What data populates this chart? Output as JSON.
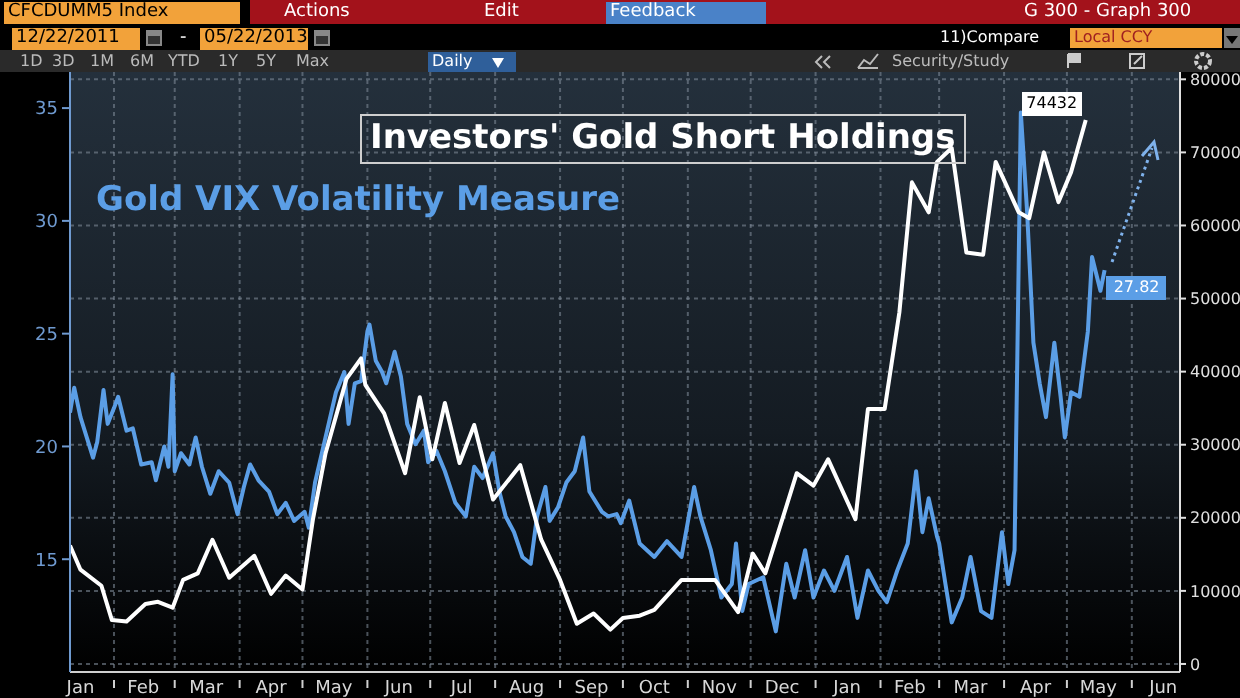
{
  "chart_data": {
    "type": "line",
    "annotations": [
      "CFCDUMM5 Index",
      "Actions",
      "Edit",
      "Feedback",
      "G 300 - Graph 300",
      "12/22/2011",
      "-",
      "05/22/2013",
      "11)Compare",
      "Local CCY",
      "1D",
      "3D",
      "1M",
      "6M",
      "YTD",
      "1Y",
      "5Y",
      "Max",
      "Daily",
      "Security/Study"
    ],
    "xlim": [
      "2012-01-11",
      "2013-06-24"
    ],
    "xticks": [
      {
        "value": "2012-01-16",
        "label": "Jan"
      },
      {
        "value": "2012-02-01",
        "label": null
      },
      {
        "value": "2012-02-15",
        "label": "Feb"
      },
      {
        "value": "2012-03-01",
        "label": null
      },
      {
        "value": "2012-03-16",
        "label": "Mar"
      },
      {
        "value": "2012-04-01",
        "label": null
      },
      {
        "value": "2012-04-16",
        "label": "Apr"
      },
      {
        "value": "2012-05-01",
        "label": null
      },
      {
        "value": "2012-05-16",
        "label": "May"
      },
      {
        "value": "2012-06-01",
        "label": null
      },
      {
        "value": "2012-06-16",
        "label": "Jun"
      },
      {
        "value": "2012-07-01",
        "label": null
      },
      {
        "value": "2012-07-16",
        "label": "Jul"
      },
      {
        "value": "2012-08-01",
        "label": null
      },
      {
        "value": "2012-08-16",
        "label": "Aug"
      },
      {
        "value": "2012-09-01",
        "label": null
      },
      {
        "value": "2012-09-16",
        "label": "Sep"
      },
      {
        "value": "2012-10-01",
        "label": null
      },
      {
        "value": "2012-10-16",
        "label": "Oct"
      },
      {
        "value": "2012-11-01",
        "label": null
      },
      {
        "value": "2012-11-16",
        "label": "Nov"
      },
      {
        "value": "2012-12-01",
        "label": null
      },
      {
        "value": "2012-12-16",
        "label": "Dec"
      },
      {
        "value": "2013-01-01",
        "label": null
      },
      {
        "value": "2013-01-16",
        "label": "Jan"
      },
      {
        "value": "2013-02-01",
        "label": null
      },
      {
        "value": "2013-02-15",
        "label": "Feb"
      },
      {
        "value": "2013-03-01",
        "label": null
      },
      {
        "value": "2013-03-16",
        "label": "Mar"
      },
      {
        "value": "2013-04-01",
        "label": null
      },
      {
        "value": "2013-04-16",
        "label": "Apr"
      },
      {
        "value": "2013-05-01",
        "label": null
      },
      {
        "value": "2013-05-16",
        "label": "May"
      },
      {
        "value": "2013-06-01",
        "label": null
      },
      {
        "value": "2013-06-16",
        "label": "Jun"
      }
    ],
    "ylim": [
      10,
      36.6
    ],
    "yticks": [
      15,
      20,
      25,
      30,
      35
    ],
    "y2lim": [
      -1100,
      81000
    ],
    "y2ticks": [
      0,
      10000,
      20000,
      30000,
      40000,
      50000,
      60000,
      70000,
      80000
    ],
    "grid": true,
    "legend": false,
    "marker": "none",
    "line_style": "solid",
    "series": [
      {
        "name": "Gold VIX Volatility Measure",
        "color": "#5b9ee6",
        "axis": "y",
        "x": [
          "2012-01-11",
          "2012-01-13",
          "2012-01-16",
          "2012-01-19",
          "2012-01-22",
          "2012-01-24",
          "2012-01-27",
          "2012-01-29",
          "2012-02-01",
          "2012-02-03",
          "2012-02-07",
          "2012-02-10",
          "2012-02-14",
          "2012-02-19",
          "2012-02-21",
          "2012-02-25",
          "2012-02-27",
          "2012-02-29",
          "2012-03-01",
          "2012-03-04",
          "2012-03-08",
          "2012-03-11",
          "2012-03-14",
          "2012-03-18",
          "2012-03-22",
          "2012-03-27",
          "2012-03-31",
          "2012-04-03",
          "2012-04-06",
          "2012-04-10",
          "2012-04-15",
          "2012-04-19",
          "2012-04-23",
          "2012-04-27",
          "2012-05-02",
          "2012-05-04",
          "2012-05-07",
          "2012-05-12",
          "2012-05-17",
          "2012-05-21",
          "2012-05-23",
          "2012-05-26",
          "2012-05-29",
          "2012-06-01",
          "2012-06-02",
          "2012-06-05",
          "2012-06-08",
          "2012-06-10",
          "2012-06-14",
          "2012-06-17",
          "2012-06-20",
          "2012-06-24",
          "2012-06-28",
          "2012-06-30",
          "2012-07-04",
          "2012-07-08",
          "2012-07-13",
          "2012-07-18",
          "2012-07-22",
          "2012-07-26",
          "2012-07-31",
          "2012-08-03",
          "2012-08-06",
          "2012-08-10",
          "2012-08-14",
          "2012-08-18",
          "2012-08-21",
          "2012-08-25",
          "2012-08-27",
          "2012-08-31",
          "2012-09-04",
          "2012-09-08",
          "2012-09-12",
          "2012-09-15",
          "2012-09-21",
          "2012-09-24",
          "2012-09-28",
          "2012-09-30",
          "2012-10-04",
          "2012-10-09",
          "2012-10-16",
          "2012-10-22",
          "2012-10-29",
          "2012-11-04",
          "2012-11-07",
          "2012-11-12",
          "2012-11-17",
          "2012-11-22",
          "2012-11-24",
          "2012-11-27",
          "2012-11-30",
          "2012-12-07",
          "2012-12-13",
          "2012-12-18",
          "2012-12-22",
          "2012-12-27",
          "2012-12-31",
          "2013-01-05",
          "2013-01-10",
          "2013-01-16",
          "2013-01-21",
          "2013-01-26",
          "2013-01-31",
          "2013-02-04",
          "2013-02-09",
          "2013-02-14",
          "2013-02-18",
          "2013-02-21",
          "2013-02-24",
          "2013-02-28",
          "2013-03-01",
          "2013-03-04",
          "2013-03-07",
          "2013-03-12",
          "2013-03-16",
          "2013-03-21",
          "2013-03-26",
          "2013-03-31",
          "2013-04-03",
          "2013-04-06",
          "2013-04-09",
          "2013-04-12",
          "2013-04-15",
          "2013-04-18",
          "2013-04-21",
          "2013-04-25",
          "2013-04-28",
          "2013-04-30",
          "2013-05-03",
          "2013-05-07",
          "2013-05-11",
          "2013-05-13",
          "2013-05-17",
          "2013-05-19"
        ],
        "values": [
          21.5,
          22.6,
          21.3,
          20.4,
          19.5,
          20.2,
          22.5,
          21.0,
          21.7,
          22.2,
          20.7,
          20.8,
          19.2,
          19.3,
          18.5,
          20.0,
          19.1,
          23.2,
          18.9,
          19.7,
          19.2,
          20.4,
          19.1,
          17.9,
          18.9,
          18.4,
          17.0,
          18.2,
          19.2,
          18.5,
          18.0,
          17.0,
          17.5,
          16.7,
          17.1,
          16.4,
          18.4,
          20.4,
          22.4,
          23.3,
          21.0,
          22.8,
          22.9,
          25.1,
          25.4,
          23.8,
          23.3,
          22.8,
          24.2,
          23.1,
          21.0,
          20.1,
          20.7,
          19.3,
          19.8,
          18.9,
          17.5,
          16.9,
          19.1,
          18.6,
          19.7,
          18.0,
          16.9,
          16.2,
          15.1,
          14.8,
          16.9,
          18.2,
          16.7,
          17.3,
          18.4,
          18.9,
          20.4,
          18.0,
          17.1,
          16.9,
          17.0,
          16.6,
          17.6,
          15.7,
          15.1,
          15.8,
          15.1,
          18.2,
          16.9,
          15.4,
          13.3,
          13.9,
          15.7,
          12.7,
          13.9,
          14.2,
          11.8,
          14.8,
          13.3,
          15.4,
          13.3,
          14.5,
          13.6,
          15.1,
          12.4,
          14.5,
          13.6,
          13.1,
          14.5,
          15.7,
          18.9,
          16.2,
          17.7,
          16.0,
          15.7,
          13.9,
          12.2,
          13.3,
          15.1,
          12.7,
          12.4,
          16.2,
          13.9,
          15.4,
          34.8,
          30.4,
          24.6,
          22.8,
          21.3,
          24.6,
          22.2,
          20.4,
          22.4,
          22.2,
          25.1,
          28.4,
          26.9,
          27.82
        ],
        "value_labels": [
          null,
          null,
          null,
          null,
          null,
          null,
          null,
          null,
          null,
          null,
          null,
          null,
          null,
          null,
          null,
          null,
          null,
          null,
          null,
          null,
          null,
          null,
          null,
          null,
          null,
          null,
          null,
          null,
          null,
          null,
          null,
          null,
          null,
          null,
          null,
          null,
          null,
          null,
          null,
          null,
          null,
          null,
          null,
          null,
          null,
          null,
          null,
          null,
          null,
          null,
          null,
          null,
          null,
          null,
          null,
          null,
          null,
          null,
          null,
          null,
          null,
          null,
          null,
          null,
          null,
          null,
          null,
          null,
          null,
          null,
          null,
          null,
          null,
          null,
          null,
          null,
          null,
          null,
          null,
          null,
          null,
          null,
          null,
          null,
          null,
          null,
          null,
          null,
          null,
          null,
          null,
          null,
          null,
          null,
          null,
          null,
          null,
          null,
          null,
          null,
          null,
          null,
          null,
          null,
          null,
          null,
          null,
          null,
          null,
          null,
          null,
          null,
          null,
          null,
          null,
          null,
          null,
          null,
          null,
          null,
          null,
          null,
          null,
          null,
          null,
          null,
          null,
          null,
          null,
          null,
          null,
          null,
          null,
          "27.82"
        ]
      },
      {
        "name": "Investors' Gold Short Holdings",
        "color": "#ffffff",
        "axis": "y2",
        "x": [
          "2012-01-11",
          "2012-01-16",
          "2012-01-26",
          "2012-01-31",
          "2012-02-07",
          "2012-02-16",
          "2012-02-22",
          "2012-02-29",
          "2012-03-05",
          "2012-03-12",
          "2012-03-19",
          "2012-03-27",
          "2012-04-08",
          "2012-04-16",
          "2012-04-23",
          "2012-05-01",
          "2012-05-06",
          "2012-05-12",
          "2012-05-22",
          "2012-05-29",
          "2012-05-31",
          "2012-06-09",
          "2012-06-19",
          "2012-06-26",
          "2012-07-02",
          "2012-07-08",
          "2012-07-15",
          "2012-07-22",
          "2012-07-31",
          "2012-08-13",
          "2012-08-23",
          "2012-09-01",
          "2012-09-09",
          "2012-09-17",
          "2012-09-25",
          "2012-10-01",
          "2012-10-09",
          "2012-10-16",
          "2012-10-29",
          "2012-11-14",
          "2012-11-25",
          "2012-12-02",
          "2012-12-08",
          "2012-12-17",
          "2012-12-23",
          "2012-12-31",
          "2013-01-07",
          "2013-01-20",
          "2013-01-26",
          "2013-02-03",
          "2013-02-10",
          "2013-02-16",
          "2013-02-24",
          "2013-02-28",
          "2013-03-07",
          "2013-03-14",
          "2013-03-22",
          "2013-03-28",
          "2013-04-08",
          "2013-04-13",
          "2013-04-20",
          "2013-04-27",
          "2013-05-03",
          "2013-05-10"
        ],
        "values": [
          16200,
          12900,
          10700,
          6000,
          5800,
          8200,
          8500,
          7700,
          11500,
          12400,
          17000,
          11800,
          14800,
          9600,
          12100,
          10200,
          19800,
          28800,
          39000,
          41800,
          38200,
          34300,
          26100,
          36500,
          28000,
          35700,
          27500,
          32700,
          22500,
          27200,
          17000,
          11500,
          5500,
          6900,
          4700,
          6300,
          6600,
          7400,
          11500,
          11500,
          7100,
          15100,
          12400,
          20600,
          26100,
          24400,
          28000,
          19800,
          34900,
          34900,
          48100,
          65900,
          61800,
          68700,
          70600,
          56300,
          56000,
          68700,
          61800,
          61000,
          70000,
          63200,
          67300,
          74432
        ],
        "value_labels": [
          null,
          null,
          null,
          null,
          null,
          null,
          null,
          null,
          null,
          null,
          null,
          null,
          null,
          null,
          null,
          null,
          null,
          null,
          null,
          null,
          null,
          null,
          null,
          null,
          null,
          null,
          null,
          null,
          null,
          null,
          null,
          null,
          null,
          null,
          null,
          null,
          null,
          null,
          null,
          null,
          null,
          null,
          null,
          null,
          null,
          null,
          null,
          null,
          null,
          null,
          null,
          null,
          null,
          null,
          null,
          null,
          null,
          null,
          null,
          null,
          null,
          null,
          null,
          "74432"
        ]
      }
    ]
  }
}
